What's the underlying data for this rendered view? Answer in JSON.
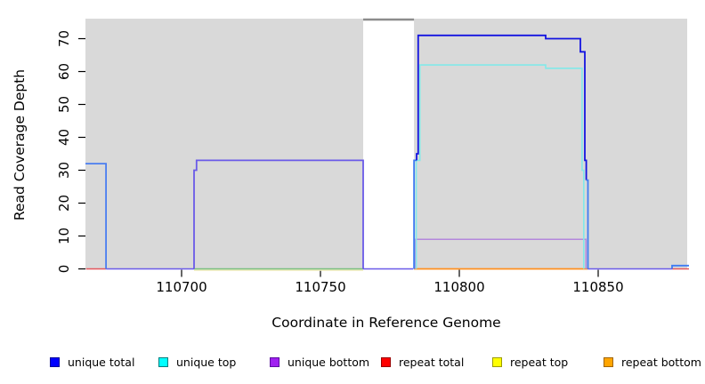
{
  "chart_data": {
    "type": "line",
    "title": "",
    "xlabel": "Coordinate in Reference Genome",
    "ylabel": "Read Coverage Depth",
    "xlim": [
      110666,
      110883
    ],
    "ylim": [
      0,
      76
    ],
    "x_ticks": [
      110700,
      110750,
      110800,
      110850
    ],
    "y_ticks": [
      0,
      10,
      20,
      30,
      40,
      50,
      60,
      70
    ],
    "grid": false,
    "legend_position": "bottom",
    "colors": {
      "plot_bg": "#d9d9d9",
      "gap_band": "#ffffff",
      "gap_top_line": "#8c8c8c"
    },
    "gap_region": [
      110765.4,
      110783.7
    ],
    "series": [
      {
        "name": "unique total",
        "color": "#0000ff",
        "step_points": [
          [
            110666,
            32
          ],
          [
            110673,
            0
          ],
          [
            110704,
            30
          ],
          [
            110705,
            33
          ],
          [
            110765,
            0
          ],
          [
            110784,
            71
          ],
          [
            110831,
            70
          ],
          [
            110844,
            66
          ],
          [
            110845,
            33
          ],
          [
            110846,
            0
          ],
          [
            110877,
            1
          ],
          [
            110883,
            1
          ]
        ]
      },
      {
        "name": "unique top",
        "color": "#00ffff",
        "step_points": [
          [
            110666,
            0
          ],
          [
            110784,
            62
          ],
          [
            110831,
            61
          ],
          [
            110845,
            0
          ],
          [
            110883,
            0
          ]
        ]
      },
      {
        "name": "unique bottom",
        "color": "#a020f0",
        "step_points": [
          [
            110666,
            0
          ],
          [
            110704,
            33
          ],
          [
            110765,
            0
          ],
          [
            110784,
            9
          ],
          [
            110846,
            0
          ],
          [
            110883,
            0
          ]
        ]
      },
      {
        "name": "repeat total",
        "color": "#ff0000",
        "step_points": [
          [
            110666,
            0
          ],
          [
            110883,
            0
          ]
        ]
      },
      {
        "name": "repeat top",
        "color": "#ffff00",
        "step_points": [
          [
            110666,
            0
          ],
          [
            110883,
            0
          ]
        ]
      },
      {
        "name": "repeat bottom",
        "color": "#ffa500",
        "step_points": [
          [
            110666,
            0
          ],
          [
            110883,
            0
          ]
        ]
      }
    ],
    "render_segments": [
      {
        "name": "baseline-red-left",
        "color": "#e4565c",
        "w": 1.5,
        "pts": [
          [
            110665.6,
            0
          ],
          [
            110672.8,
            0
          ]
        ]
      },
      {
        "name": "baseline-violet-1",
        "color": "#6a5ae8",
        "w": 1.5,
        "pts": [
          [
            110672.8,
            0
          ],
          [
            110704.5,
            0
          ]
        ]
      },
      {
        "name": "baseline-yellow",
        "color": "#efeab8",
        "w": 1.6,
        "pts": [
          [
            110704.5,
            -0.4
          ],
          [
            110765.4,
            -0.4
          ]
        ]
      },
      {
        "name": "baseline-green",
        "color": "#79be7d",
        "w": 1.5,
        "pts": [
          [
            110704.5,
            0
          ],
          [
            110765.4,
            0
          ]
        ]
      },
      {
        "name": "baseline-violet-2",
        "color": "#6a5ae8",
        "w": 1.5,
        "pts": [
          [
            110765.4,
            0
          ],
          [
            110783.4,
            0
          ]
        ]
      },
      {
        "name": "baseline-orange",
        "color": "#ff8f1f",
        "w": 1.8,
        "pts": [
          [
            110783.7,
            0
          ],
          [
            110846.2,
            0
          ]
        ]
      },
      {
        "name": "baseline-violet-3",
        "color": "#6a5ae8",
        "w": 1.5,
        "pts": [
          [
            110846.2,
            0
          ],
          [
            110876.6,
            0
          ]
        ]
      },
      {
        "name": "baseline-red-right",
        "color": "#e4565c",
        "w": 1.5,
        "pts": [
          [
            110876.6,
            0
          ],
          [
            110883.0,
            0
          ]
        ]
      },
      {
        "name": "left-plateau-blue",
        "color": "#4a7df0",
        "w": 1.8,
        "pts": [
          [
            110665.4,
            32
          ],
          [
            110672.8,
            32
          ],
          [
            110672.8,
            0
          ]
        ]
      },
      {
        "name": "mid-plateau-violet",
        "color": "#6a5ae8",
        "w": 1.8,
        "pts": [
          [
            110704.5,
            0
          ],
          [
            110704.5,
            30
          ],
          [
            110705.4,
            30
          ],
          [
            110705.4,
            33
          ],
          [
            110765.4,
            33
          ],
          [
            110765.4,
            0
          ]
        ]
      },
      {
        "name": "right-purple-rect",
        "color": "#b488dc",
        "w": 1.5,
        "pts": [
          [
            110784.1,
            0
          ],
          [
            110784.1,
            9
          ],
          [
            110845.6,
            9
          ],
          [
            110845.6,
            0
          ]
        ]
      },
      {
        "name": "right-cyan-line",
        "color": "#82e9e9",
        "w": 1.6,
        "pts": [
          [
            110784.5,
            0
          ],
          [
            110784.5,
            33
          ],
          [
            110785.8,
            33
          ],
          [
            110785.8,
            62
          ],
          [
            110831.1,
            62
          ],
          [
            110831.1,
            61
          ],
          [
            110844.2,
            61
          ],
          [
            110844.2,
            30
          ],
          [
            110844.8,
            30
          ],
          [
            110844.8,
            0
          ]
        ]
      },
      {
        "name": "right-lightblue-rise",
        "color": "#3f7bf2",
        "w": 1.8,
        "pts": [
          [
            110783.7,
            0
          ],
          [
            110783.7,
            33
          ],
          [
            110784.6,
            33
          ]
        ]
      },
      {
        "name": "right-darkblue-top",
        "color": "#1414e0",
        "w": 1.8,
        "pts": [
          [
            110784.6,
            33
          ],
          [
            110784.6,
            35
          ],
          [
            110785.2,
            35
          ],
          [
            110785.2,
            71
          ],
          [
            110831.1,
            71
          ],
          [
            110831.1,
            70
          ],
          [
            110843.6,
            70
          ],
          [
            110843.6,
            66
          ],
          [
            110845.2,
            66
          ],
          [
            110845.2,
            33
          ],
          [
            110845.7,
            33
          ],
          [
            110845.7,
            27
          ]
        ]
      },
      {
        "name": "right-lightblue-fall",
        "color": "#3f7bf2",
        "w": 1.8,
        "pts": [
          [
            110845.7,
            27
          ],
          [
            110846.3,
            27
          ],
          [
            110846.3,
            0
          ]
        ]
      },
      {
        "name": "far-right-step",
        "color": "#3f7bf2",
        "w": 1.8,
        "pts": [
          [
            110876.6,
            0
          ],
          [
            110876.6,
            1
          ],
          [
            110883.0,
            1
          ]
        ]
      }
    ]
  },
  "legend": {
    "items": [
      {
        "label": "unique total",
        "fill": "#0000ff",
        "border": "#000099"
      },
      {
        "label": "unique top",
        "fill": "#00ffff",
        "border": "#007d7d"
      },
      {
        "label": "unique bottom",
        "fill": "#a020f0",
        "border": "#5c0da0"
      },
      {
        "label": "repeat total",
        "fill": "#ff0000",
        "border": "#990000"
      },
      {
        "label": "repeat top",
        "fill": "#ffff00",
        "border": "#9b9b00"
      },
      {
        "label": "repeat bottom",
        "fill": "#ffa500",
        "border": "#a06400"
      }
    ]
  }
}
